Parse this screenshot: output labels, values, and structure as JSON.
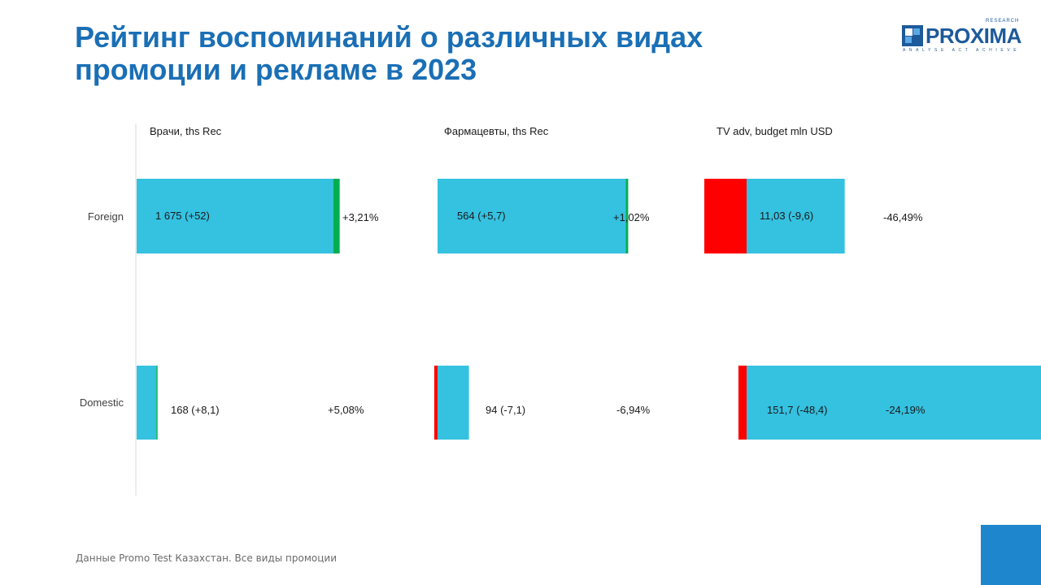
{
  "header": {
    "title_line1": "Рейтинг воспоминаний о различных видах",
    "title_line2": "промоции и рекламе в 2023"
  },
  "logo": {
    "word": "PROXIMA",
    "research": "RESEARCH",
    "tagline": "ANALYSE ACT ACHIEVE"
  },
  "footer": {
    "note": "Данные Promo Test Казахстан. Все виды промоции"
  },
  "colors": {
    "bar": "#35c1e0",
    "increase": "#00b050",
    "decrease": "#ff0000",
    "title": "#1a6fb5",
    "axis": "#d9d9d9",
    "corner": "#1e86cc"
  },
  "chart_data": {
    "type": "bar",
    "orientation": "horizontal",
    "categories": [
      "Foreign",
      "Domestic"
    ],
    "panels": [
      {
        "title": "Врачи, ths Rec",
        "values": [
          1675,
          168
        ],
        "changes": [
          52,
          8.1
        ],
        "labels": [
          "1 675 (+52)",
          "168 (+8,1)"
        ],
        "pct_labels": [
          "+3,21%",
          "+5,08%"
        ]
      },
      {
        "title": "Фармацевты, ths Rec",
        "values": [
          564,
          94
        ],
        "changes": [
          5.7,
          -7.1
        ],
        "labels": [
          "564 (+5,7)",
          "94 (-7,1)"
        ],
        "pct_labels": [
          "+1,02%",
          "-6,94%"
        ]
      },
      {
        "title": "TV adv, budget mln USD",
        "values": [
          11.03,
          151.7
        ],
        "changes": [
          -9.6,
          -48.4
        ],
        "labels": [
          "11,03 (-9,6)",
          "151,7 (-48,4)"
        ],
        "pct_labels": [
          "-46,49%",
          "-24,19%"
        ]
      }
    ]
  }
}
